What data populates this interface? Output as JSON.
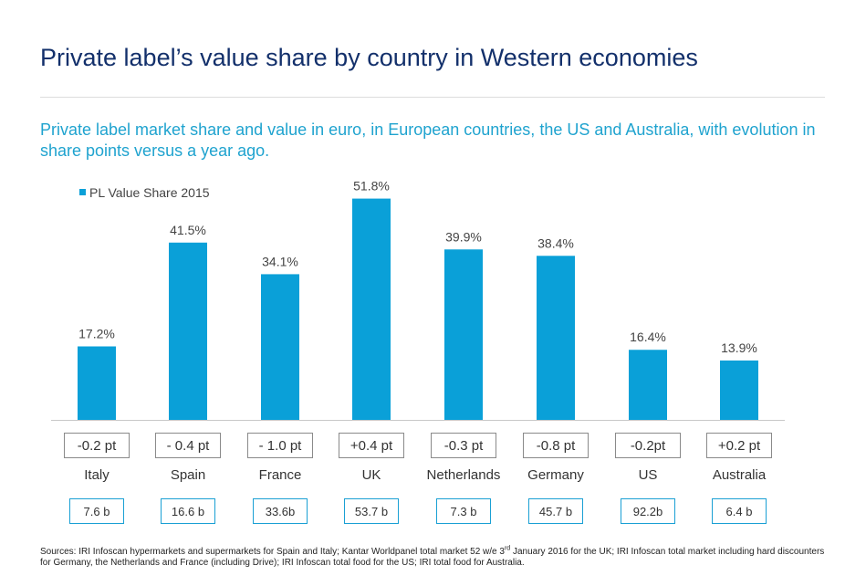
{
  "title": "Private label’s value share by country in Western economies",
  "subtitle": "Private label market share and value in euro, in European countries, the US and Australia, with evolution in share points versus a year ago.",
  "chart_data": {
    "type": "bar",
    "series_name": "PL Value Share 2015",
    "categories": [
      "Italy",
      "Spain",
      "France",
      "UK",
      "Netherlands",
      "Germany",
      "US",
      "Australia"
    ],
    "values": [
      17.2,
      41.5,
      34.1,
      51.8,
      39.9,
      38.4,
      16.4,
      13.9
    ],
    "value_labels": [
      "17.2%",
      "41.5%",
      "34.1%",
      "51.8%",
      "39.9%",
      "38.4%",
      "16.4%",
      "13.9%"
    ],
    "changes": [
      "-0.2 pt",
      "- 0.4 pt",
      "- 1.0 pt",
      "+0.4 pt",
      "-0.3 pt",
      "-0.8 pt",
      "-0.2pt",
      "+0.2 pt"
    ],
    "market_values": [
      "7.6 b",
      "16.6 b",
      "33.6b",
      "53.7 b",
      "7.3 b",
      "45.7 b",
      "92.2b",
      "6.4 b"
    ],
    "ylim": [
      0,
      60
    ],
    "bar_color": "#0aa0d8",
    "legend_position": "top-left"
  },
  "sources": {
    "part1": "Sources: IRI Infoscan hypermarkets and supermarkets for Spain and Italy; Kantar Worldpanel total market 52 w/e 3",
    "sup": "rd",
    "part2": " January 2016 for the UK; IRI Infoscan total market including hard discounters for Germany, the Netherlands and France (including Drive); IRI Infoscan total food for the US; IRI total food for Australia."
  }
}
